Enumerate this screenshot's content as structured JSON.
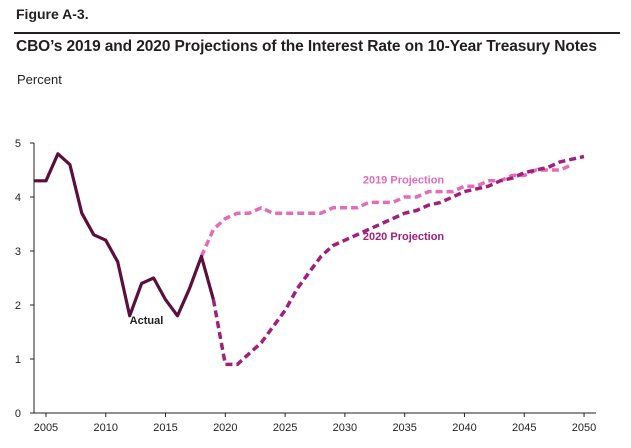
{
  "header": {
    "figure_label": "Figure A-3.",
    "title": "CBO’s 2019 and 2020 Projections of the Interest Rate on 10-Year Treasury Notes"
  },
  "colors": {
    "actual": "#5a0f3c",
    "projection_2019": "#e26cb8",
    "projection_2020": "#a1207e",
    "axis": "#231f20"
  },
  "chart_data": {
    "type": "line",
    "title": "CBO’s 2019 and 2020 Projections of the Interest Rate on 10-Year Treasury Notes",
    "xlabel": "",
    "ylabel": "Percent",
    "xlim": [
      2004,
      2051
    ],
    "ylim": [
      0,
      5
    ],
    "x_ticks": [
      2005,
      2010,
      2015,
      2020,
      2025,
      2030,
      2035,
      2040,
      2045,
      2050
    ],
    "y_ticks": [
      0,
      1,
      2,
      3,
      4,
      5
    ],
    "grid": false,
    "legend": "none (series labeled directly on chart)",
    "series": [
      {
        "name": "Actual",
        "style": "solid",
        "points": [
          [
            2004,
            4.3
          ],
          [
            2005,
            4.3
          ],
          [
            2006,
            4.8
          ],
          [
            2007,
            4.6
          ],
          [
            2008,
            3.7
          ],
          [
            2009,
            3.3
          ],
          [
            2010,
            3.2
          ],
          [
            2011,
            2.8
          ],
          [
            2012,
            1.8
          ],
          [
            2013,
            2.4
          ],
          [
            2014,
            2.5
          ],
          [
            2015,
            2.1
          ],
          [
            2016,
            1.8
          ],
          [
            2017,
            2.3
          ],
          [
            2018,
            2.9
          ],
          [
            2019,
            2.1
          ]
        ]
      },
      {
        "name": "2019 Projection",
        "style": "dashed",
        "points": [
          [
            2018,
            2.9
          ],
          [
            2019,
            3.4
          ],
          [
            2020,
            3.6
          ],
          [
            2021,
            3.7
          ],
          [
            2022,
            3.7
          ],
          [
            2023,
            3.8
          ],
          [
            2024,
            3.7
          ],
          [
            2025,
            3.7
          ],
          [
            2026,
            3.7
          ],
          [
            2027,
            3.7
          ],
          [
            2028,
            3.7
          ],
          [
            2029,
            3.8
          ],
          [
            2030,
            3.8
          ],
          [
            2031,
            3.8
          ],
          [
            2032,
            3.9
          ],
          [
            2033,
            3.9
          ],
          [
            2034,
            3.9
          ],
          [
            2035,
            4.0
          ],
          [
            2036,
            4.0
          ],
          [
            2037,
            4.1
          ],
          [
            2038,
            4.1
          ],
          [
            2039,
            4.1
          ],
          [
            2040,
            4.2
          ],
          [
            2041,
            4.2
          ],
          [
            2042,
            4.3
          ],
          [
            2043,
            4.3
          ],
          [
            2044,
            4.4
          ],
          [
            2045,
            4.4
          ],
          [
            2046,
            4.5
          ],
          [
            2047,
            4.5
          ],
          [
            2048,
            4.5
          ],
          [
            2049,
            4.6
          ]
        ]
      },
      {
        "name": "2020 Projection",
        "style": "dashed",
        "points": [
          [
            2019,
            2.1
          ],
          [
            2020,
            0.9
          ],
          [
            2021,
            0.9
          ],
          [
            2022,
            1.1
          ],
          [
            2023,
            1.3
          ],
          [
            2024,
            1.6
          ],
          [
            2025,
            1.9
          ],
          [
            2026,
            2.3
          ],
          [
            2027,
            2.6
          ],
          [
            2028,
            2.9
          ],
          [
            2029,
            3.1
          ],
          [
            2030,
            3.2
          ],
          [
            2031,
            3.3
          ],
          [
            2032,
            3.4
          ],
          [
            2033,
            3.5
          ],
          [
            2034,
            3.6
          ],
          [
            2035,
            3.7
          ],
          [
            2036,
            3.75
          ],
          [
            2037,
            3.85
          ],
          [
            2038,
            3.9
          ],
          [
            2039,
            4.0
          ],
          [
            2040,
            4.1
          ],
          [
            2041,
            4.15
          ],
          [
            2042,
            4.2
          ],
          [
            2043,
            4.3
          ],
          [
            2044,
            4.35
          ],
          [
            2045,
            4.45
          ],
          [
            2046,
            4.5
          ],
          [
            2047,
            4.55
          ],
          [
            2048,
            4.65
          ],
          [
            2049,
            4.7
          ],
          [
            2050,
            4.75
          ]
        ]
      }
    ],
    "annotations": [
      {
        "text": "Actual",
        "series": "Actual",
        "anchor": [
          2012,
          1.65
        ],
        "align": "left"
      },
      {
        "text": "2019 Projection",
        "series": "2019 Projection",
        "anchor": [
          2031.5,
          4.25
        ],
        "align": "left"
      },
      {
        "text": "2020 Projection",
        "series": "2020 Projection",
        "anchor": [
          2031.5,
          3.2
        ],
        "align": "left"
      }
    ]
  }
}
